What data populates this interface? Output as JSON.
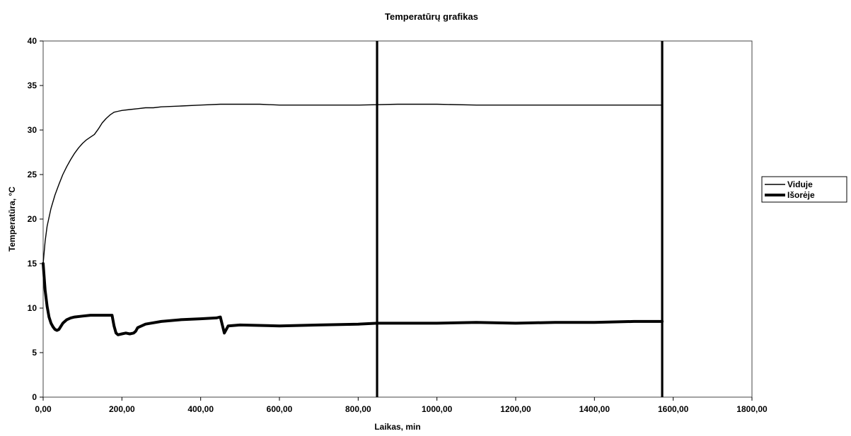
{
  "chart_data": {
    "type": "line",
    "title": "Temperatūrų grafikas",
    "xlabel": "Laikas, min",
    "ylabel": "Temperatūra, °C",
    "xlim": [
      0,
      1800
    ],
    "ylim": [
      0,
      40
    ],
    "x_ticks": [
      "0,00",
      "200,00",
      "400,00",
      "600,00",
      "800,00",
      "1000,00",
      "1200,00",
      "1400,00",
      "1600,00",
      "1800,00"
    ],
    "y_ticks": [
      "0",
      "5",
      "10",
      "15",
      "20",
      "25",
      "30",
      "35",
      "40"
    ],
    "grid": false,
    "legend_position": "right",
    "vertical_markers": [
      848,
      1572
    ],
    "series": [
      {
        "name": "Viduje",
        "style": "thin",
        "color": "#000000",
        "x": [
          0,
          5,
          10,
          20,
          30,
          40,
          50,
          60,
          70,
          80,
          90,
          100,
          110,
          120,
          130,
          140,
          150,
          160,
          170,
          180,
          190,
          200,
          220,
          240,
          260,
          280,
          300,
          350,
          400,
          450,
          500,
          550,
          600,
          700,
          800,
          900,
          1000,
          1100,
          1200,
          1300,
          1400,
          1500,
          1572
        ],
        "y": [
          15.0,
          17.5,
          19.2,
          21.2,
          22.7,
          23.9,
          25.0,
          25.9,
          26.7,
          27.4,
          28.0,
          28.5,
          28.9,
          29.2,
          29.5,
          30.1,
          30.8,
          31.3,
          31.7,
          32.0,
          32.1,
          32.2,
          32.3,
          32.4,
          32.5,
          32.5,
          32.6,
          32.7,
          32.8,
          32.9,
          32.9,
          32.9,
          32.8,
          32.8,
          32.8,
          32.9,
          32.9,
          32.8,
          32.8,
          32.8,
          32.8,
          32.8,
          32.8
        ]
      },
      {
        "name": "Išorėje",
        "style": "thick",
        "color": "#000000",
        "x": [
          0,
          5,
          10,
          15,
          20,
          25,
          30,
          35,
          40,
          50,
          60,
          70,
          80,
          100,
          120,
          140,
          160,
          175,
          180,
          185,
          190,
          200,
          210,
          220,
          230,
          235,
          240,
          260,
          300,
          350,
          400,
          440,
          450,
          460,
          470,
          500,
          600,
          700,
          800,
          848,
          900,
          1000,
          1100,
          1200,
          1300,
          1400,
          1500,
          1572
        ],
        "y": [
          15.0,
          12.0,
          10.2,
          9.0,
          8.3,
          7.9,
          7.6,
          7.5,
          7.6,
          8.3,
          8.7,
          8.9,
          9.0,
          9.1,
          9.2,
          9.2,
          9.2,
          9.2,
          8.0,
          7.2,
          7.0,
          7.1,
          7.2,
          7.1,
          7.2,
          7.4,
          7.8,
          8.2,
          8.5,
          8.7,
          8.8,
          8.9,
          9.0,
          7.2,
          8.0,
          8.1,
          8.0,
          8.1,
          8.2,
          8.3,
          8.3,
          8.3,
          8.4,
          8.3,
          8.4,
          8.4,
          8.5,
          8.5
        ]
      }
    ]
  }
}
